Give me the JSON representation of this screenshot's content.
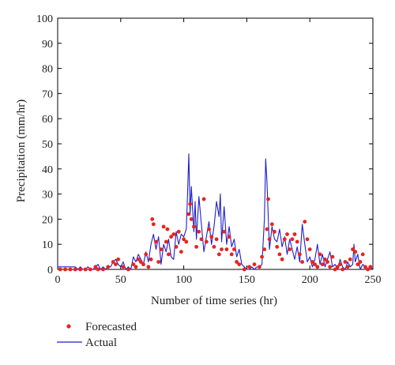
{
  "chart_data": {
    "type": "line",
    "title": "",
    "xlabel": "Number of time series (hr)",
    "ylabel": "Precipitation (mm/hr)",
    "xlim": [
      0,
      250
    ],
    "ylim": [
      0,
      100
    ],
    "xticks": [
      0,
      50,
      100,
      150,
      200,
      250
    ],
    "yticks": [
      0,
      10,
      20,
      30,
      40,
      50,
      60,
      70,
      80,
      90,
      100
    ],
    "grid": false,
    "legend": "bottom-left, below plot",
    "series": [
      {
        "name": "Forecasted",
        "style": "markers",
        "color": "#e8231f",
        "x": [
          2,
          6,
          10,
          14,
          18,
          22,
          26,
          30,
          32,
          36,
          40,
          44,
          46,
          48,
          52,
          56,
          60,
          62,
          64,
          66,
          68,
          70,
          72,
          74,
          75,
          76,
          78,
          80,
          82,
          84,
          86,
          87,
          88,
          90,
          92,
          94,
          96,
          98,
          100,
          102,
          104,
          105,
          106,
          108,
          110,
          112,
          114,
          116,
          118,
          120,
          122,
          124,
          126,
          128,
          130,
          132,
          134,
          136,
          138,
          140,
          142,
          144,
          148,
          152,
          156,
          160,
          162,
          164,
          166,
          167,
          168,
          170,
          172,
          174,
          176,
          178,
          180,
          182,
          184,
          186,
          188,
          190,
          192,
          194,
          196,
          198,
          200,
          202,
          204,
          206,
          208,
          210,
          212,
          214,
          216,
          218,
          220,
          222,
          224,
          226,
          228,
          230,
          232,
          234,
          236,
          238,
          240,
          242,
          244,
          246,
          248
        ],
        "y": [
          0,
          0,
          0,
          0,
          0,
          0,
          0,
          1,
          0,
          0,
          1,
          3,
          2,
          4,
          1,
          0,
          2,
          1,
          4,
          3,
          2,
          6,
          1,
          4,
          20,
          18,
          11,
          3,
          8,
          17,
          11,
          16,
          6,
          13,
          14,
          9,
          15,
          7,
          12,
          11,
          22,
          26,
          20,
          17,
          9,
          15,
          12,
          28,
          11,
          16,
          13,
          9,
          12,
          6,
          8,
          15,
          8,
          13,
          6,
          8,
          3,
          2,
          0,
          1,
          2,
          1,
          5,
          8,
          16,
          28,
          12,
          18,
          15,
          9,
          6,
          4,
          12,
          14,
          8,
          12,
          14,
          11,
          6,
          3,
          19,
          12,
          8,
          3,
          2,
          1,
          6,
          2,
          4,
          3,
          1,
          5,
          0,
          1,
          2,
          0,
          3,
          1,
          4,
          8,
          7,
          2,
          3,
          6,
          1,
          0,
          1
        ]
      },
      {
        "name": "Actual",
        "style": "line",
        "color": "#1f1fc8",
        "x": [
          0,
          2,
          4,
          6,
          8,
          10,
          12,
          14,
          16,
          18,
          20,
          22,
          24,
          26,
          28,
          30,
          32,
          34,
          36,
          38,
          40,
          42,
          44,
          46,
          48,
          50,
          52,
          54,
          56,
          58,
          60,
          62,
          64,
          66,
          68,
          70,
          72,
          74,
          76,
          78,
          80,
          82,
          84,
          86,
          88,
          90,
          92,
          94,
          96,
          98,
          100,
          102,
          103,
          104,
          105,
          106,
          108,
          109,
          110,
          112,
          114,
          116,
          118,
          120,
          122,
          124,
          126,
          128,
          129,
          130,
          132,
          134,
          136,
          138,
          140,
          142,
          144,
          146,
          148,
          150,
          152,
          154,
          156,
          158,
          160,
          162,
          164,
          165,
          166,
          168,
          170,
          172,
          174,
          176,
          178,
          180,
          182,
          184,
          186,
          188,
          190,
          192,
          194,
          196,
          198,
          200,
          202,
          204,
          206,
          208,
          210,
          212,
          214,
          216,
          218,
          220,
          222,
          224,
          226,
          228,
          230,
          232,
          234,
          235,
          236,
          238,
          240,
          242,
          244,
          246,
          248,
          250
        ],
        "y": [
          1,
          1,
          1,
          1,
          1,
          1,
          1,
          1,
          0,
          1,
          0,
          0,
          1,
          0,
          0,
          1,
          2,
          0,
          1,
          0,
          1,
          1,
          3,
          4,
          2,
          1,
          3,
          0,
          1,
          0,
          5,
          3,
          6,
          4,
          2,
          7,
          3,
          10,
          14,
          8,
          13,
          2,
          10,
          7,
          12,
          5,
          4,
          15,
          10,
          14,
          13,
          16,
          30,
          46,
          22,
          33,
          15,
          27,
          12,
          29,
          18,
          7,
          13,
          19,
          10,
          17,
          27,
          21,
          30,
          11,
          25,
          10,
          17,
          9,
          12,
          5,
          8,
          2,
          1,
          0,
          0,
          1,
          0,
          1,
          1,
          2,
          20,
          44,
          35,
          8,
          17,
          12,
          11,
          16,
          9,
          13,
          6,
          12,
          8,
          4,
          9,
          3,
          18,
          10,
          3,
          5,
          1,
          4,
          10,
          2,
          6,
          1,
          4,
          7,
          1,
          2,
          0,
          4,
          1,
          0,
          3,
          1,
          2,
          10,
          3,
          6,
          0,
          2,
          1,
          0,
          1,
          0
        ]
      }
    ]
  }
}
